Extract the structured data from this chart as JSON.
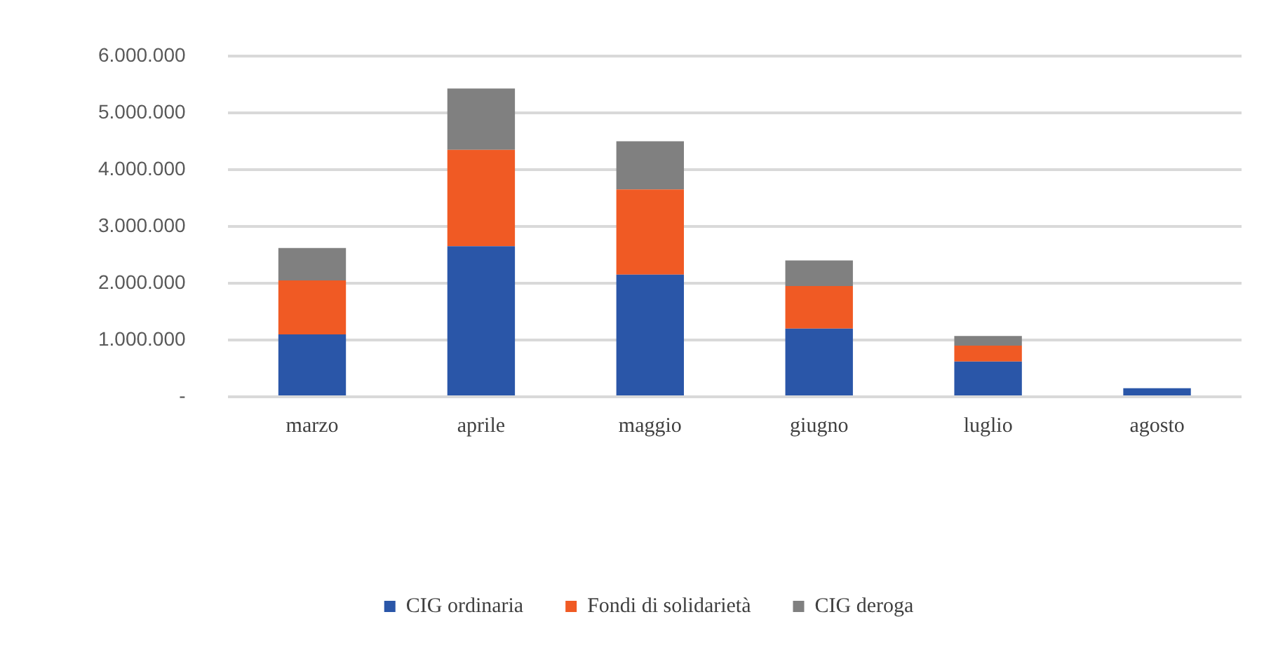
{
  "chart_data": {
    "type": "bar",
    "stacked": true,
    "categories": [
      "marzo",
      "aprile",
      "maggio",
      "giugno",
      "luglio",
      "agosto"
    ],
    "series": [
      {
        "name": "CIG ordinaria",
        "color": "#2a56a8",
        "values": [
          1100000,
          2650000,
          2150000,
          1200000,
          620000,
          150000
        ]
      },
      {
        "name": "Fondi di solidarietà",
        "color": "#f05a24",
        "values": [
          950000,
          1700000,
          1500000,
          750000,
          280000,
          0
        ]
      },
      {
        "name": "CIG deroga",
        "color": "#808080",
        "values": [
          570000,
          1080000,
          850000,
          450000,
          170000,
          0
        ]
      }
    ],
    "ylim": [
      0,
      6000000
    ],
    "yticks": [
      {
        "value": 0,
        "label": "-"
      },
      {
        "value": 1000000,
        "label": "1.000.000"
      },
      {
        "value": 2000000,
        "label": "2.000.000"
      },
      {
        "value": 3000000,
        "label": "3.000.000"
      },
      {
        "value": 4000000,
        "label": "4.000.000"
      },
      {
        "value": 5000000,
        "label": "5.000.000"
      },
      {
        "value": 6000000,
        "label": "6.000.000"
      }
    ],
    "grid": "y",
    "legend": "bottom"
  }
}
